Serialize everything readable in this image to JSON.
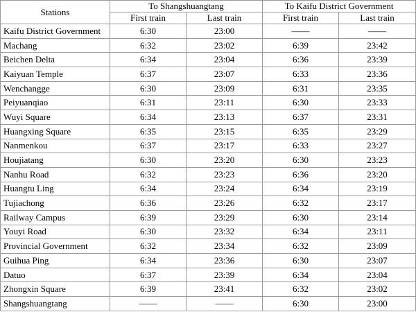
{
  "table": {
    "header": {
      "stations": "Stations",
      "groups": [
        "To Shangshuangtang",
        "To Kaifu District Government"
      ],
      "subheaders": [
        "First train",
        "Last train",
        "First train",
        "Last train"
      ]
    },
    "rows": [
      [
        "Kaifu District Government",
        "6:30",
        "23:00",
        "——",
        "——"
      ],
      [
        "Machang",
        "6:32",
        "23:02",
        "6:39",
        "23:42"
      ],
      [
        "Beichen Delta",
        "6:34",
        "23:04",
        "6:36",
        "23:39"
      ],
      [
        "Kaiyuan Temple",
        "6:37",
        "23:07",
        "6:33",
        "23:36"
      ],
      [
        "Wenchangge",
        "6:30",
        "23:09",
        "6:31",
        "23:35"
      ],
      [
        "Peiyuanqiao",
        "6:31",
        "23:11",
        "6:30",
        "23:33"
      ],
      [
        "Wuyi Square",
        "6:34",
        "23:13",
        "6:37",
        "23:31"
      ],
      [
        "Huangxing Square",
        "6:35",
        "23:15",
        "6:35",
        "23:29"
      ],
      [
        "Nanmenkou",
        "6:37",
        "23:17",
        "6:33",
        "23:27"
      ],
      [
        "Houjiatang",
        "6:30",
        "23:20",
        "6:30",
        "23:23"
      ],
      [
        "Nanhu Road",
        "6:32",
        "23:23",
        "6:36",
        "23:20"
      ],
      [
        "Huangtu Ling",
        "6:34",
        "23:24",
        "6:34",
        "23:19"
      ],
      [
        "Tujiachong",
        "6:36",
        "23:26",
        "6:32",
        "23:17"
      ],
      [
        "Railway Campus",
        "6:39",
        "23:29",
        "6:30",
        "23:14"
      ],
      [
        "Youyi Road",
        "6:30",
        "23:32",
        "6:34",
        "23:11"
      ],
      [
        "Provincial Government",
        "6:32",
        "23:34",
        "6:32",
        "23:09"
      ],
      [
        "Guihua Ping",
        "6:34",
        "23:36",
        "6:30",
        "23:07"
      ],
      [
        "Datuo",
        "6:37",
        "23:39",
        "6:34",
        "23:04"
      ],
      [
        "Zhongxin Square",
        "6:39",
        "23:41",
        "6:32",
        "23:02"
      ],
      [
        "Shangshuangtang",
        "——",
        "——",
        "6:30",
        "23:00"
      ]
    ]
  }
}
